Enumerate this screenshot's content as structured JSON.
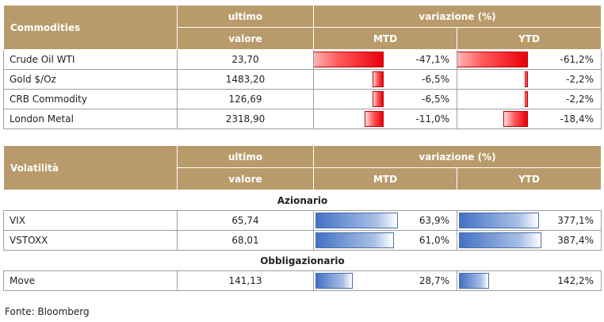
{
  "commodities": {
    "header": {
      "label": "Commodities",
      "last_1": "ultimo",
      "last_2": "valore",
      "change": "variazione (%)",
      "mtd": "MTD",
      "ytd": "YTD"
    },
    "rows": [
      {
        "name": "Crude Oil WTI",
        "value": "23,70",
        "mtd": "-47,1%",
        "ytd": "-61,2%",
        "mtd_num": -47.1,
        "ytd_num": -61.2
      },
      {
        "name": "Gold $/Oz",
        "value": "1483,20",
        "mtd": "-6,5%",
        "ytd": "-2,2%",
        "mtd_num": -6.5,
        "ytd_num": -2.2
      },
      {
        "name": "CRB Commodity",
        "value": "126,69",
        "mtd": "-6,5%",
        "ytd": "-2,2%",
        "mtd_num": -6.5,
        "ytd_num": -2.2
      },
      {
        "name": "London Metal",
        "value": "2318,90",
        "mtd": "-11,0%",
        "ytd": "-18,4%",
        "mtd_num": -11.0,
        "ytd_num": -18.4
      }
    ]
  },
  "volatility": {
    "header": {
      "label": "Volatilità",
      "last_1": "ultimo",
      "last_2": "valore",
      "change": "variazione (%)",
      "mtd": "MTD",
      "ytd": "YTD"
    },
    "section_equity": "Azionario",
    "equity_rows": [
      {
        "name": "VIX",
        "value": "65,74",
        "mtd": "63,9%",
        "ytd": "377,1%",
        "mtd_num": 63.9,
        "ytd_num": 377.1
      },
      {
        "name": "VSTOXX",
        "value": "68,01",
        "mtd": "61,0%",
        "ytd": "387,4%",
        "mtd_num": 61.0,
        "ytd_num": 387.4
      }
    ],
    "section_bond": "Obbligazionario",
    "bond_rows": [
      {
        "name": "Move",
        "value": "141,13",
        "mtd": "28,7%",
        "ytd": "142,2%",
        "mtd_num": 28.7,
        "ytd_num": 142.2
      }
    ]
  },
  "source": "Fonte: Bloomberg",
  "colors": {
    "header_bg": "#b99b6b",
    "negative_bar": "#e8000a",
    "positive_bar": "#4472c4"
  }
}
